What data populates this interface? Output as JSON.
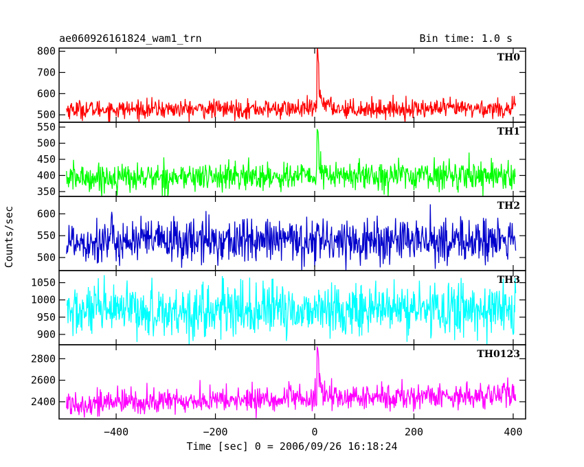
{
  "chart_data": {
    "type": "line",
    "title": "ae060926161824_wam1_trn",
    "bin_time_label": "Bin time: 1.0 s",
    "xlabel": "Time [sec] 0 = 2006/09/26 16:18:24",
    "ylabel": "Counts/sec",
    "xlim": [
      -515,
      425
    ],
    "x_ticks": [
      -400,
      -200,
      0,
      200,
      400
    ],
    "x_range": [
      -500,
      405
    ],
    "grid": false,
    "panels": [
      {
        "name": "TH0",
        "color": "#ff0000",
        "ylim": [
          465,
          815
        ],
        "y_ticks": [
          500,
          600,
          700,
          800
        ],
        "baseline": 528,
        "slope": 0.004,
        "noise": 22,
        "burst_peak": 820,
        "burst_decay": 12
      },
      {
        "name": "TH1",
        "color": "#00ff00",
        "ylim": [
          335,
          565
        ],
        "y_ticks": [
          350,
          400,
          450,
          500,
          550
        ],
        "baseline": 398,
        "slope": 0.012,
        "noise": 22,
        "burst_peak": 560,
        "burst_decay": 6
      },
      {
        "name": "TH2",
        "color": "#0000cc",
        "ylim": [
          470,
          640
        ],
        "y_ticks": [
          500,
          550,
          600
        ],
        "baseline": 538,
        "slope": 0.0,
        "noise": 26,
        "burst_peak": 600,
        "burst_decay": 3
      },
      {
        "name": "TH3",
        "color": "#00ffff",
        "ylim": [
          870,
          1085
        ],
        "y_ticks": [
          900,
          950,
          1000,
          1050
        ],
        "baseline": 970,
        "slope": 0.01,
        "noise": 38,
        "burst_peak": 1010,
        "burst_decay": 3
      },
      {
        "name": "TH0123",
        "color": "#ff00ff",
        "ylim": [
          2240,
          2930
        ],
        "y_ticks": [
          2400,
          2600,
          2800
        ],
        "baseline": 2430,
        "slope": 0.09,
        "noise": 60,
        "burst_peak": 2920,
        "burst_decay": 10
      }
    ]
  }
}
